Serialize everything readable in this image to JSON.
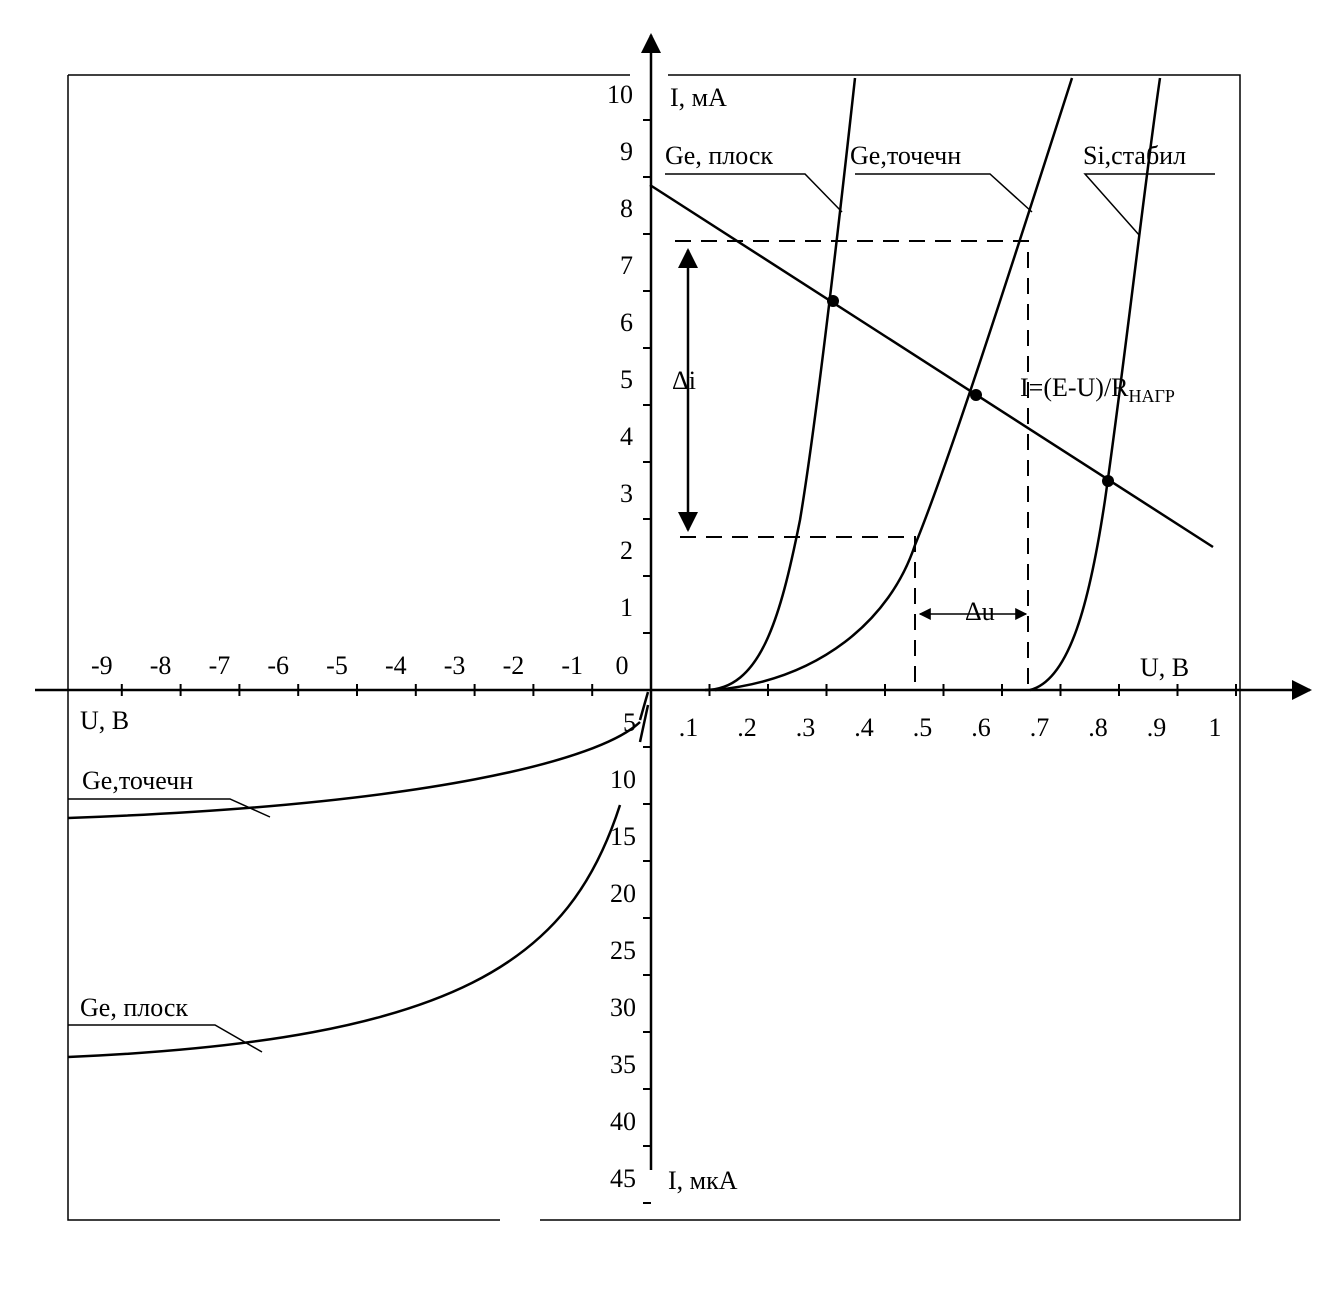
{
  "axes": {
    "u_label_pos": "U, В",
    "u_label_neg": "U, В",
    "i_label_pos": "I, мА",
    "i_label_neg": "I, мкА"
  },
  "ticks": {
    "origin": "0",
    "u_pos": [
      ".1",
      ".2",
      ".3",
      ".4",
      ".5",
      ".6",
      ".7",
      ".8",
      ".9",
      "1"
    ],
    "u_neg": [
      "-9",
      "-8",
      "-7",
      "-6",
      "-5",
      "-4",
      "-3",
      "-2",
      "-1"
    ],
    "i_pos": [
      "1",
      "2",
      "3",
      "4",
      "5",
      "6",
      "7",
      "8",
      "9",
      "10"
    ],
    "i_neg": [
      "5",
      "10",
      "15",
      "20",
      "25",
      "30",
      "35",
      "40",
      "45"
    ]
  },
  "curves": {
    "ge_planar_fwd": "Ge, плоск",
    "ge_point_fwd": "Ge,точечн",
    "si_stab_fwd": "Si,стабил",
    "ge_point_rev": "Ge,точечн",
    "ge_planar_rev": "Ge, плоск"
  },
  "annotations": {
    "delta_i": "Δi",
    "delta_u": "Δu",
    "formula": "I=(E-U)/R",
    "formula_sub": "НАГР"
  }
}
